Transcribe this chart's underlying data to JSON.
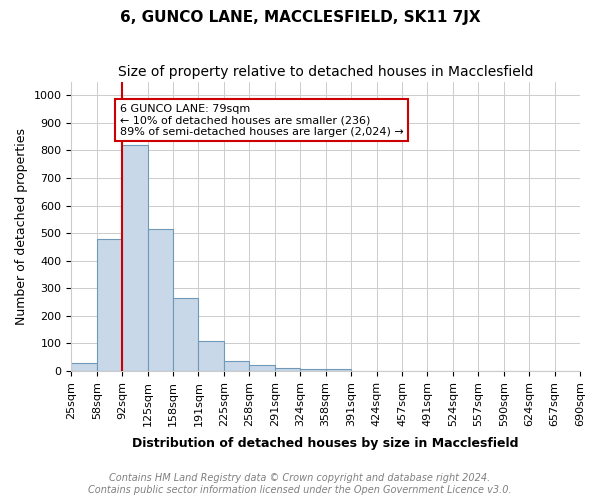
{
  "title": "6, GUNCO LANE, MACCLESFIELD, SK11 7JX",
  "subtitle": "Size of property relative to detached houses in Macclesfield",
  "xlabel": "Distribution of detached houses by size in Macclesfield",
  "ylabel": "Number of detached properties",
  "footer_line1": "Contains HM Land Registry data © Crown copyright and database right 2024.",
  "footer_line2": "Contains public sector information licensed under the Open Government Licence v3.0.",
  "bin_labels": [
    "25sqm",
    "58sqm",
    "92sqm",
    "125sqm",
    "158sqm",
    "191sqm",
    "225sqm",
    "258sqm",
    "291sqm",
    "324sqm",
    "358sqm",
    "391sqm",
    "424sqm",
    "457sqm",
    "491sqm",
    "524sqm",
    "557sqm",
    "590sqm",
    "624sqm",
    "657sqm",
    "690sqm"
  ],
  "bar_values": [
    30,
    480,
    820,
    515,
    265,
    110,
    38,
    22,
    12,
    8,
    8,
    0,
    0,
    0,
    0,
    0,
    0,
    0,
    0,
    0
  ],
  "bar_color": "#c8d8e8",
  "bar_edge_color": "#7098b8",
  "ylim": [
    0,
    1050
  ],
  "yticks": [
    0,
    100,
    200,
    300,
    400,
    500,
    600,
    700,
    800,
    900,
    1000
  ],
  "vline_x": 1.5,
  "vline_color": "#cc0000",
  "annotation_text": "6 GUNCO LANE: 79sqm\n← 10% of detached houses are smaller (236)\n89% of semi-detached houses are larger (2,024) →",
  "annotation_box_color": "#ffffff",
  "annotation_box_edge_color": "#cc0000",
  "grid_color": "#cccccc",
  "background_color": "#ffffff",
  "title_fontsize": 11,
  "subtitle_fontsize": 10,
  "label_fontsize": 9,
  "tick_fontsize": 8,
  "annotation_fontsize": 8,
  "footer_fontsize": 7
}
